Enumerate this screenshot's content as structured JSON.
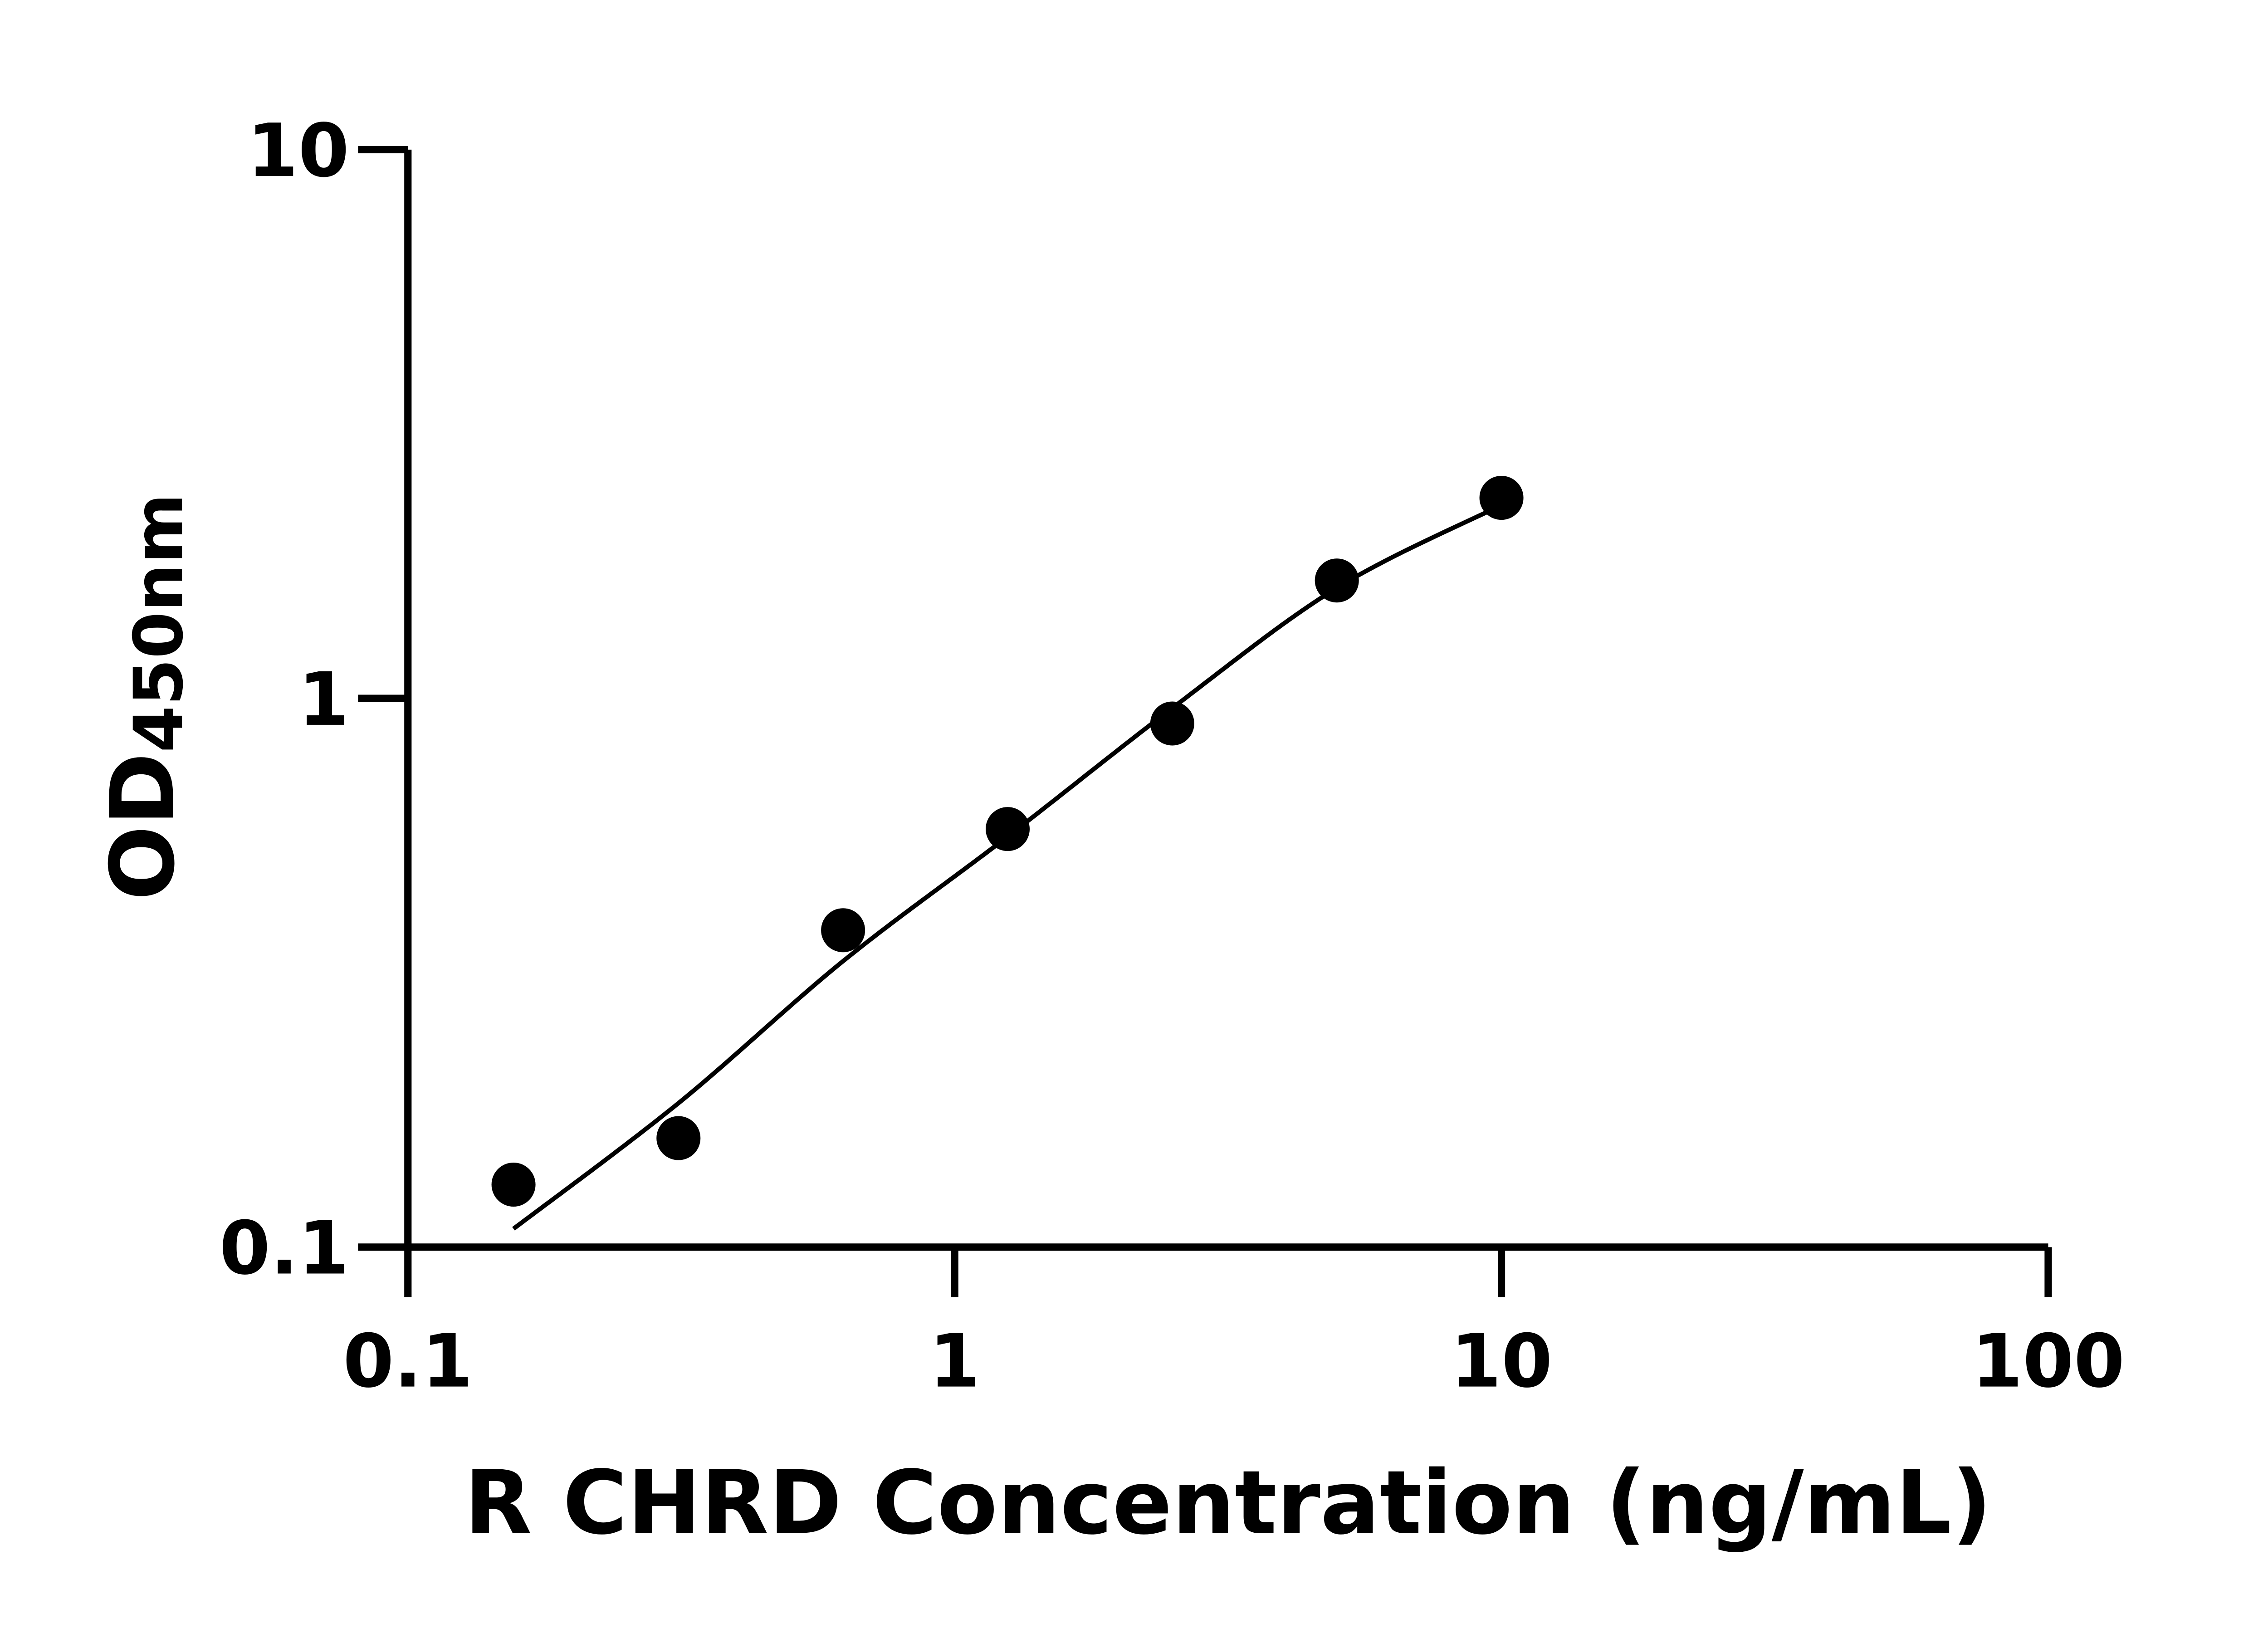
{
  "chart_data": {
    "type": "scatter",
    "title": "",
    "xlabel": "R CHRD Concentration (ng/mL)",
    "ylabel_main": "OD",
    "ylabel_sub": "450nm",
    "x_scale": "log",
    "y_scale": "log",
    "xlim": [
      0.1,
      100
    ],
    "ylim": [
      0.1,
      10
    ],
    "x_ticks": [
      0.1,
      1,
      10,
      100
    ],
    "x_tick_labels": [
      "0.1",
      "1",
      "10",
      "100"
    ],
    "y_ticks": [
      0.1,
      1,
      10
    ],
    "y_tick_labels": [
      "0.1",
      "1",
      "10"
    ],
    "grid": false,
    "legend": "none",
    "marker_color": "#000000",
    "points": [
      {
        "x": 0.156,
        "y": 0.13
      },
      {
        "x": 0.3125,
        "y": 0.158
      },
      {
        "x": 0.625,
        "y": 0.378
      },
      {
        "x": 1.25,
        "y": 0.578
      },
      {
        "x": 2.5,
        "y": 0.9
      },
      {
        "x": 5,
        "y": 1.64
      },
      {
        "x": 10,
        "y": 2.32
      }
    ],
    "fit_curve": [
      {
        "x": 0.156,
        "y": 0.108
      },
      {
        "x": 0.3125,
        "y": 0.183
      },
      {
        "x": 0.625,
        "y": 0.332
      },
      {
        "x": 1.25,
        "y": 0.56
      },
      {
        "x": 2.5,
        "y": 0.96
      },
      {
        "x": 5,
        "y": 1.59
      },
      {
        "x": 10,
        "y": 2.25
      }
    ]
  }
}
